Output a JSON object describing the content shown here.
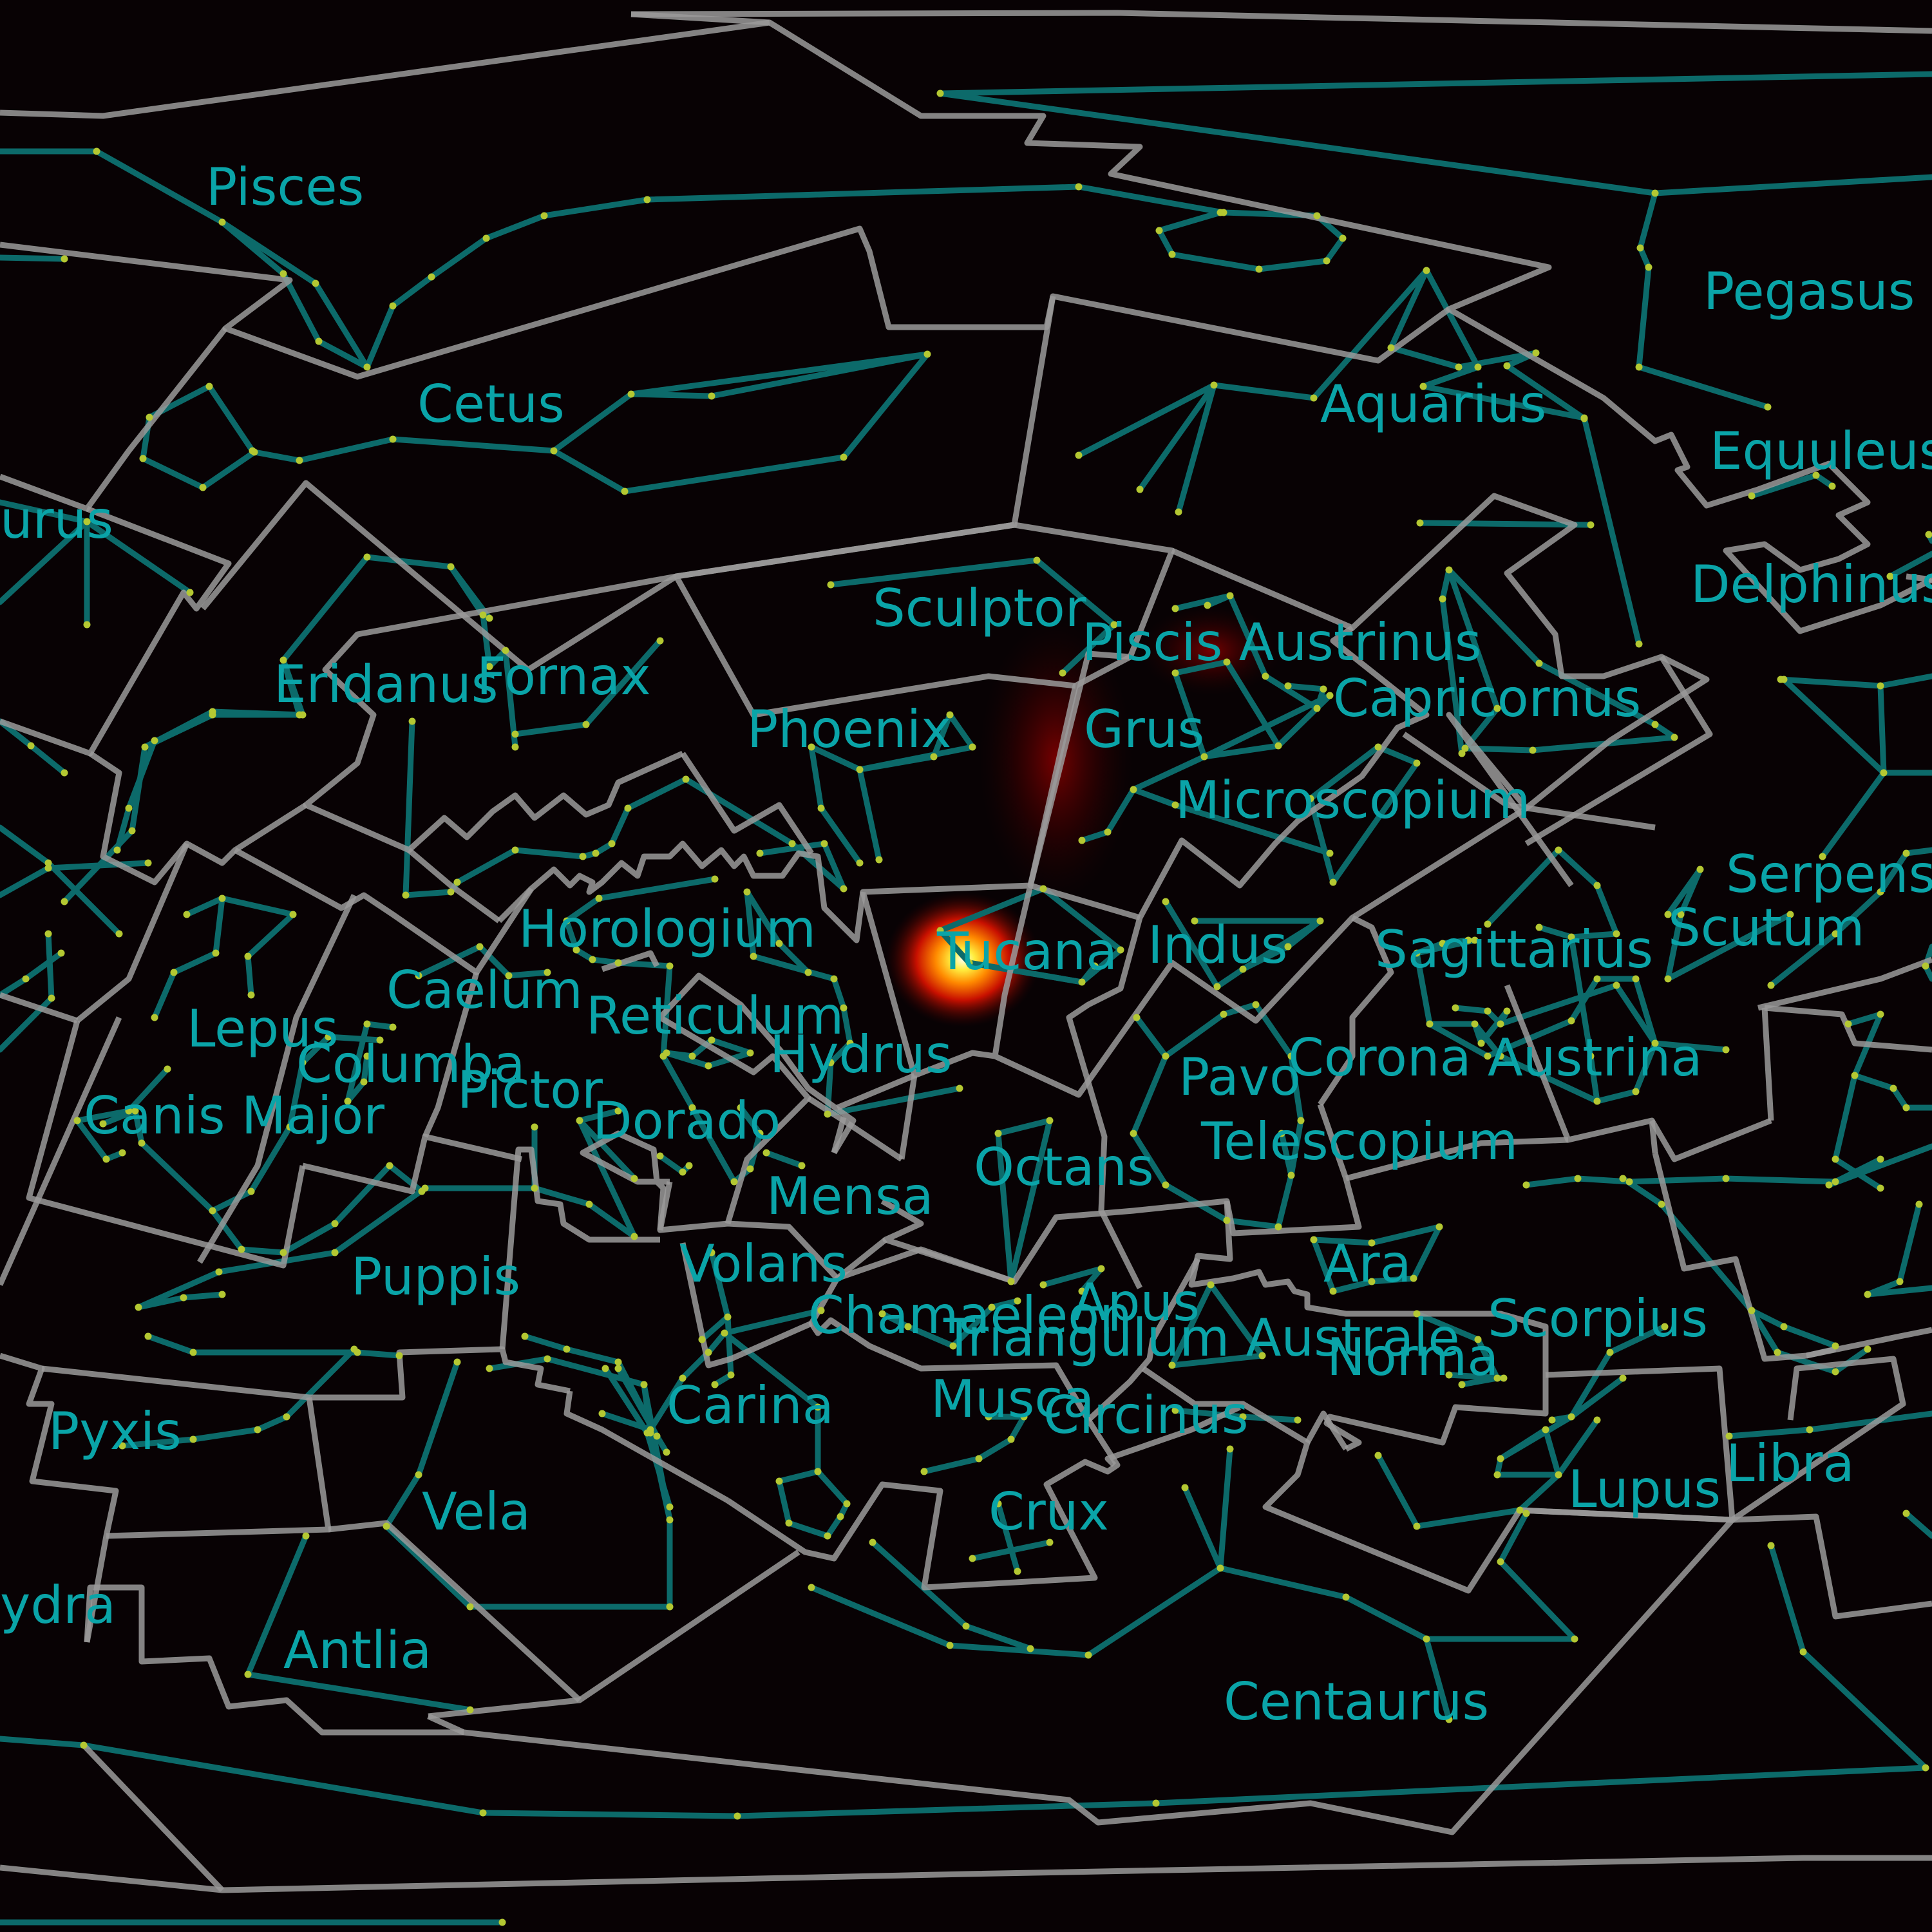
{
  "colors": {
    "background": "#080204",
    "boundary": "#9a9a9a",
    "stick": "#0c6a6a",
    "star": "#b4c832",
    "label": "#0aa4a8",
    "glow_core": "#ffffe0",
    "glow_mid": "#ffd000",
    "glow_outer": "#ff2a00"
  },
  "constellations": [
    {
      "label": "Pisces"
    },
    {
      "label": "Cetus"
    },
    {
      "label": "Pegasus"
    },
    {
      "label": "Aquarius"
    },
    {
      "label": "Equuleus"
    },
    {
      "label": "urus"
    },
    {
      "label": "Delphinus"
    },
    {
      "label": "Sculptor"
    },
    {
      "label": "Piscis Austrinus"
    },
    {
      "label": "Eridanus"
    },
    {
      "label": "Fornax"
    },
    {
      "label": "Capricornus"
    },
    {
      "label": "Phoenix"
    },
    {
      "label": "Grus"
    },
    {
      "label": "Microscopium"
    },
    {
      "label": "Serpens"
    },
    {
      "label": "Horologium"
    },
    {
      "label": "Tucana"
    },
    {
      "label": "Indus"
    },
    {
      "label": "Sagittarius"
    },
    {
      "label": "Scutum"
    },
    {
      "label": "Caelum"
    },
    {
      "label": "Reticulum"
    },
    {
      "label": "Lepus"
    },
    {
      "label": "Columba"
    },
    {
      "label": "Hydrus"
    },
    {
      "label": "Corona Austrina"
    },
    {
      "label": "Pictor"
    },
    {
      "label": "Pavo"
    },
    {
      "label": "Canis Major"
    },
    {
      "label": "Dorado"
    },
    {
      "label": "Telescopium"
    },
    {
      "label": "Octans"
    },
    {
      "label": "Mensa"
    },
    {
      "label": "Ara"
    },
    {
      "label": "Puppis"
    },
    {
      "label": "Volans"
    },
    {
      "label": "Apus"
    },
    {
      "label": "Scorpius"
    },
    {
      "label": "Chamaeleon"
    },
    {
      "label": "Triangulum Australe"
    },
    {
      "label": "Norma"
    },
    {
      "label": "Pyxis"
    },
    {
      "label": "Carina"
    },
    {
      "label": "Musca"
    },
    {
      "label": "Circinus"
    },
    {
      "label": "Libra"
    },
    {
      "label": "Lupus"
    },
    {
      "label": "Vela"
    },
    {
      "label": "Crux"
    },
    {
      "label": "ydra"
    },
    {
      "label": "Antlia"
    },
    {
      "label": "Centaurus"
    }
  ]
}
